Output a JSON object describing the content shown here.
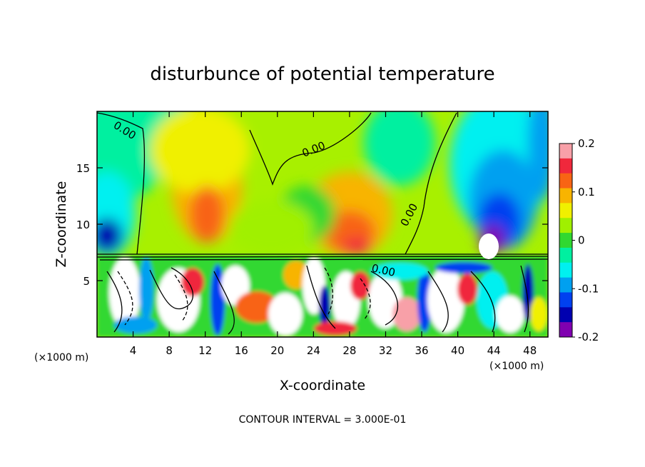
{
  "chart_data": {
    "type": "heatmap",
    "title": "disturbunce of potential temperature",
    "xlabel": "X-coordinate",
    "ylabel": "Z-coordinate",
    "x_unit": "(×1000 m)",
    "xlim": [
      0,
      50
    ],
    "ylim": [
      0,
      20
    ],
    "x_ticks": [
      "4",
      "8",
      "12",
      "16",
      "20",
      "24",
      "28",
      "32",
      "36",
      "40",
      "44",
      "48"
    ],
    "y_ticks": [
      "5",
      "10",
      "15"
    ],
    "colorbar": {
      "range": [
        -0.2,
        0.2
      ],
      "tick_labels": [
        "0.2",
        "0.1",
        "0",
        "-0.1",
        "-0.2"
      ],
      "colors": [
        "#f8a0a8",
        "#f0283c",
        "#f86414",
        "#f8b400",
        "#f0f000",
        "#a0f000",
        "#30d830",
        "#00f0a0",
        "#00f0f0",
        "#00a0f0",
        "#0040f0",
        "#0000b0",
        "#8000b0"
      ]
    },
    "contour_labels": [
      "0.00",
      "0.00",
      "0.00",
      "0.00"
    ],
    "contour_note": "CONTOUR INTERVAL = 3.000E-01"
  }
}
